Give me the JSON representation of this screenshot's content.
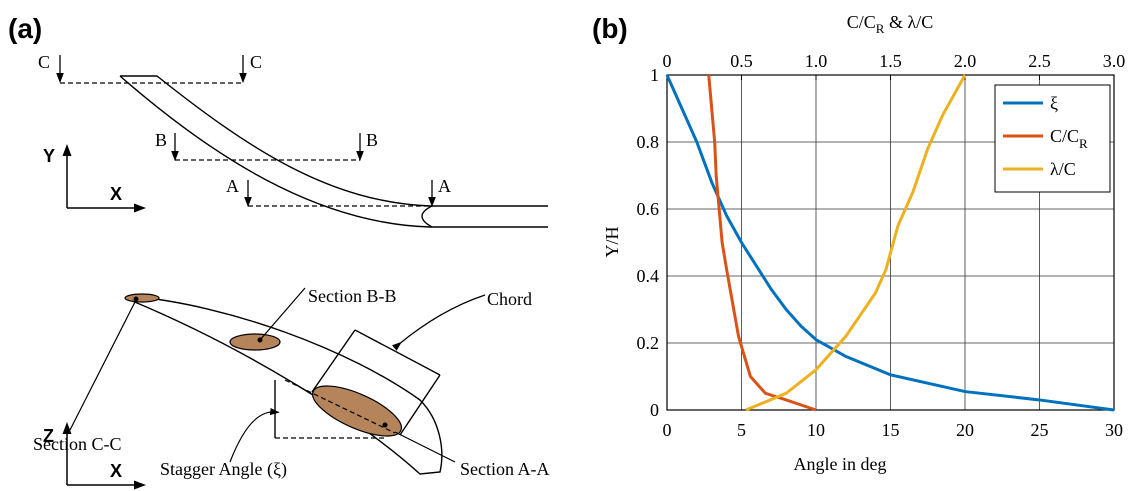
{
  "panel_a": {
    "label": "(a)",
    "top_view": {
      "section_marks": [
        "C",
        "C",
        "B",
        "B",
        "A",
        "A"
      ],
      "axis_y": "Y",
      "axis_x": "X"
    },
    "side_view": {
      "axis_z": "Z",
      "axis_x": "X",
      "labels": [
        "Section B-B",
        "Chord",
        "Section C-C",
        "Stagger Angle (ξ)",
        "Section A-A"
      ]
    }
  },
  "chart_data": {
    "type": "line",
    "panel_label": "(b)",
    "xlabel": "Angle in deg",
    "x2label": {
      "text": "C/C",
      "subscript": "R",
      "text_after": " & λ/C"
    },
    "ylabel": "Y/H",
    "xlim": [
      0,
      30
    ],
    "xticks": [
      0,
      5,
      10,
      15,
      20,
      25,
      30
    ],
    "x2lim": [
      0,
      3
    ],
    "x2ticks": [
      0,
      0.5,
      {
        "value": 1,
        "label": "1.0"
      },
      1.5,
      {
        "value": 2,
        "label": "2.0"
      },
      2.5,
      {
        "value": 3,
        "label": "3.0"
      }
    ],
    "ylim": [
      0,
      1
    ],
    "yticks": [
      0,
      0.2,
      0.4,
      0.6,
      0.8,
      1
    ],
    "grid": true,
    "legend": "upper right",
    "series": [
      {
        "name": "ξ",
        "color": "#0072bd",
        "x": [
          0,
          1,
          2,
          3,
          4,
          5,
          6,
          7,
          8,
          9,
          10,
          12,
          15,
          20,
          25,
          30
        ],
        "y": [
          1,
          0.9,
          0.8,
          0.68,
          0.58,
          0.5,
          0.43,
          0.36,
          0.3,
          0.25,
          0.21,
          0.16,
          0.105,
          0.055,
          0.03,
          0
        ]
      },
      {
        "name": "C/C",
        "subscript": "R",
        "axis": "x2",
        "color": "#d95319",
        "x": [
          0.28,
          0.3,
          0.32,
          0.33,
          0.35,
          0.37,
          0.4,
          0.44,
          0.48,
          0.52,
          0.56,
          0.66,
          0.8,
          1.0
        ],
        "y": [
          1,
          0.9,
          0.8,
          0.7,
          0.6,
          0.5,
          0.42,
          0.32,
          0.22,
          0.16,
          0.1,
          0.05,
          0.03,
          0
        ]
      },
      {
        "name": "λ/C",
        "axis": "x2",
        "color": "#edb120",
        "x": [
          0.53,
          0.8,
          1.0,
          1.2,
          1.4,
          1.47,
          1.55,
          1.65,
          1.75,
          1.85,
          2.0
        ],
        "y": [
          0,
          0.05,
          0.12,
          0.22,
          0.35,
          0.42,
          0.55,
          0.65,
          0.78,
          0.88,
          1
        ]
      }
    ]
  }
}
